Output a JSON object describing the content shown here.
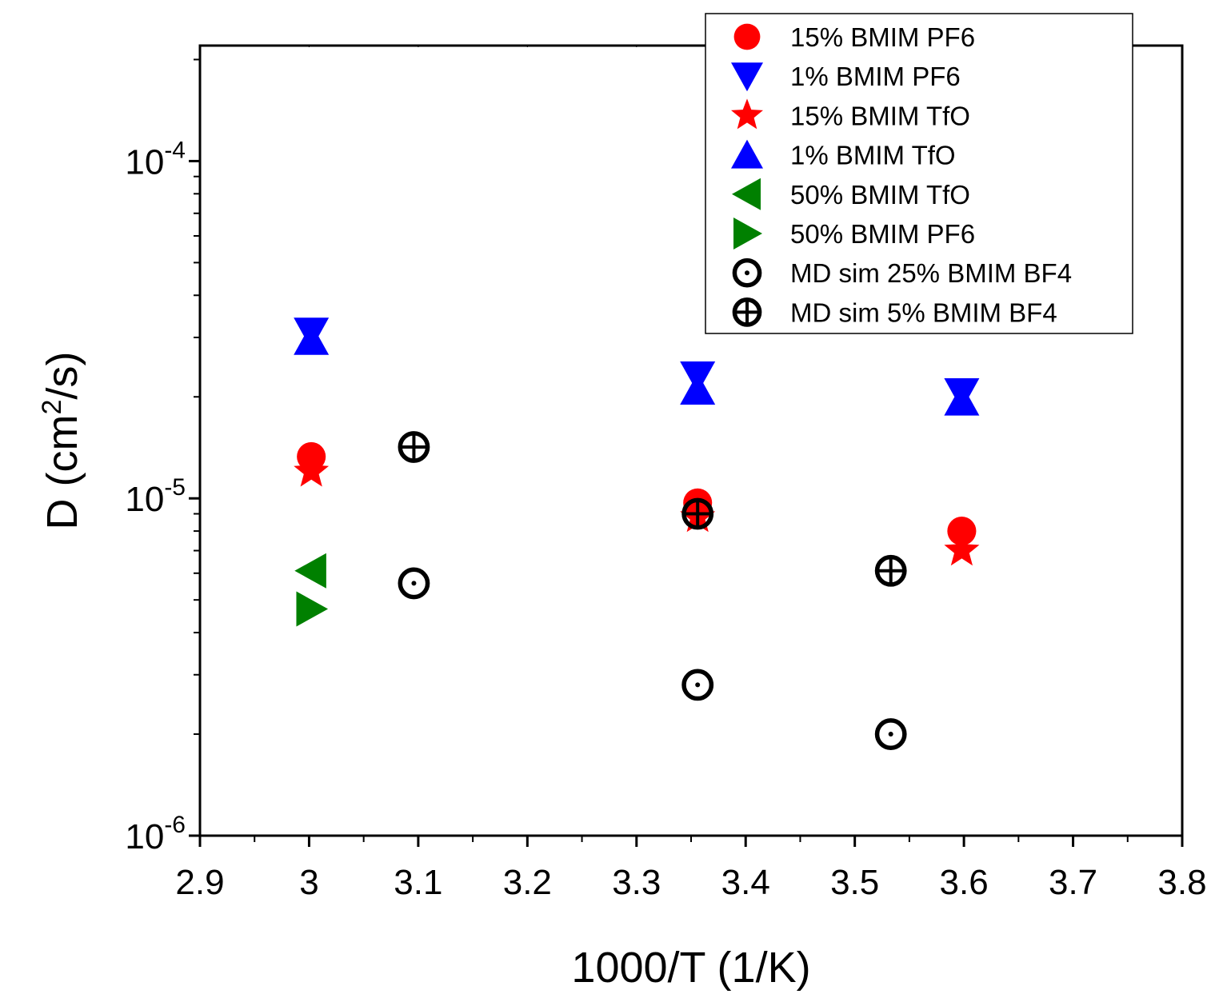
{
  "chart_data": {
    "type": "scatter",
    "xlabel": "1000/T (1/K)",
    "ylabel_main": "D (cm",
    "ylabel_sup": "2",
    "ylabel_tail": "/s)",
    "xlim": [
      2.9,
      3.8
    ],
    "ylim": [
      1e-06,
      0.00022
    ],
    "y_scale": "log",
    "x_ticks": [
      2.9,
      3.0,
      3.1,
      3.2,
      3.3,
      3.4,
      3.5,
      3.6,
      3.7,
      3.8
    ],
    "x_tick_labels": [
      "2.9",
      "3",
      "3.1",
      "3.2",
      "3.3",
      "3.4",
      "3.5",
      "3.6",
      "3.7",
      "3.8"
    ],
    "y_ticks": [
      {
        "value": 0.0001,
        "base": "10",
        "exp": "-4"
      },
      {
        "value": 1e-05,
        "base": "10",
        "exp": "-5"
      },
      {
        "value": 1e-06,
        "base": "10",
        "exp": "-6"
      }
    ],
    "legend_position": "top-right",
    "series": [
      {
        "name": "15% BMIM PF6",
        "marker": "circle",
        "color": "#ff0000",
        "points": [
          {
            "x": 3.002,
            "y": 1.33e-05
          },
          {
            "x": 3.356,
            "y": 9.7e-06
          },
          {
            "x": 3.598,
            "y": 8e-06
          }
        ]
      },
      {
        "name": "1% BMIM PF6",
        "marker": "triangle-down",
        "color": "#0000ff",
        "points": [
          {
            "x": 3.002,
            "y": 3.1e-05
          },
          {
            "x": 3.356,
            "y": 2.3e-05
          },
          {
            "x": 3.598,
            "y": 2.05e-05
          }
        ]
      },
      {
        "name": "15% BMIM TfO",
        "marker": "star",
        "color": "#ff0000",
        "points": [
          {
            "x": 3.002,
            "y": 1.2e-05
          },
          {
            "x": 3.356,
            "y": 8.8e-06
          },
          {
            "x": 3.598,
            "y": 7e-06
          }
        ]
      },
      {
        "name": "1% BMIM TfO",
        "marker": "triangle-up",
        "color": "#0000ff",
        "points": [
          {
            "x": 3.002,
            "y": 2.95e-05
          },
          {
            "x": 3.356,
            "y": 2.1e-05
          },
          {
            "x": 3.598,
            "y": 1.95e-05
          }
        ]
      },
      {
        "name": "50% BMIM TfO",
        "marker": "triangle-left",
        "color": "#008000",
        "points": [
          {
            "x": 3.002,
            "y": 6.1e-06
          }
        ]
      },
      {
        "name": "50% BMIM PF6",
        "marker": "triangle-right",
        "color": "#008000",
        "points": [
          {
            "x": 3.002,
            "y": 4.7e-06
          }
        ]
      },
      {
        "name": "MD sim 25% BMIM BF4",
        "marker": "circle-dot",
        "color": "#000000",
        "points": [
          {
            "x": 3.096,
            "y": 5.6e-06
          },
          {
            "x": 3.356,
            "y": 2.8e-06
          },
          {
            "x": 3.533,
            "y": 2e-06
          }
        ]
      },
      {
        "name": "MD sim 5% BMIM BF4",
        "marker": "circle-cross",
        "color": "#000000",
        "points": [
          {
            "x": 3.096,
            "y": 1.42e-05
          },
          {
            "x": 3.356,
            "y": 9e-06
          },
          {
            "x": 3.533,
            "y": 6.1e-06
          }
        ]
      }
    ]
  }
}
